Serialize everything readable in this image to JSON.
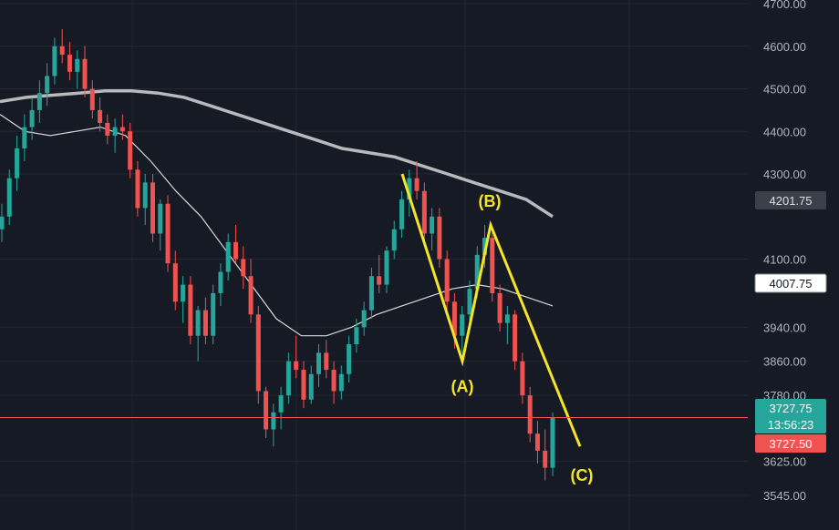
{
  "colors": {
    "background": "#161a25",
    "grid": "#232734",
    "up": "#26a69a",
    "down": "#ef5350",
    "ma_slow": "#b8b8bd",
    "ma_fast": "#d9d9d9",
    "wave": "#f5e52a",
    "price_line": "#ef5350",
    "axis_text": "#b2b5be"
  },
  "chart_data": {
    "type": "candlestick",
    "title": "",
    "ylim": [
      3520,
      4720
    ],
    "y_ticks": [
      "4700.00",
      "4600.00",
      "4500.00",
      "4400.00",
      "4300.00",
      "4100.00",
      "3940.00",
      "3860.00",
      "3780.00",
      "3625.00",
      "3545.00"
    ],
    "y_tick_values": [
      4700,
      4600,
      4500,
      4400,
      4300,
      4100,
      3940,
      3860,
      3780,
      3625,
      3545
    ],
    "candles": [
      [
        4170,
        4230,
        4140,
        4200
      ],
      [
        4200,
        4310,
        4180,
        4290
      ],
      [
        4290,
        4390,
        4260,
        4360
      ],
      [
        4360,
        4440,
        4330,
        4410
      ],
      [
        4410,
        4480,
        4380,
        4450
      ],
      [
        4450,
        4520,
        4420,
        4490
      ],
      [
        4490,
        4560,
        4460,
        4530
      ],
      [
        4530,
        4620,
        4510,
        4600
      ],
      [
        4600,
        4640,
        4560,
        4580
      ],
      [
        4580,
        4610,
        4520,
        4540
      ],
      [
        4540,
        4590,
        4500,
        4570
      ],
      [
        4570,
        4600,
        4480,
        4500
      ],
      [
        4500,
        4520,
        4430,
        4450
      ],
      [
        4450,
        4480,
        4400,
        4420
      ],
      [
        4420,
        4440,
        4370,
        4390
      ],
      [
        4390,
        4430,
        4350,
        4410
      ],
      [
        4410,
        4440,
        4380,
        4400
      ],
      [
        4400,
        4420,
        4290,
        4310
      ],
      [
        4310,
        4330,
        4200,
        4220
      ],
      [
        4220,
        4300,
        4180,
        4280
      ],
      [
        4280,
        4300,
        4140,
        4160
      ],
      [
        4160,
        4240,
        4120,
        4230
      ],
      [
        4230,
        4250,
        4070,
        4090
      ],
      [
        4090,
        4120,
        3980,
        4000
      ],
      [
        4000,
        4060,
        3950,
        4040
      ],
      [
        4040,
        4060,
        3900,
        3920
      ],
      [
        3920,
        3990,
        3860,
        3980
      ],
      [
        3980,
        4010,
        3900,
        3920
      ],
      [
        3920,
        4040,
        3900,
        4020
      ],
      [
        4020,
        4090,
        3990,
        4070
      ],
      [
        4070,
        4160,
        4050,
        4140
      ],
      [
        4140,
        4180,
        4090,
        4100
      ],
      [
        4100,
        4130,
        4030,
        4060
      ],
      [
        4060,
        4100,
        3950,
        3970
      ],
      [
        3970,
        3990,
        3760,
        3790
      ],
      [
        3790,
        3800,
        3680,
        3700
      ],
      [
        3700,
        3760,
        3660,
        3740
      ],
      [
        3740,
        3800,
        3700,
        3780
      ],
      [
        3780,
        3880,
        3760,
        3860
      ],
      [
        3860,
        3920,
        3820,
        3840
      ],
      [
        3840,
        3860,
        3750,
        3770
      ],
      [
        3770,
        3850,
        3760,
        3830
      ],
      [
        3830,
        3900,
        3800,
        3880
      ],
      [
        3880,
        3910,
        3820,
        3840
      ],
      [
        3840,
        3860,
        3760,
        3790
      ],
      [
        3790,
        3850,
        3770,
        3830
      ],
      [
        3830,
        3920,
        3810,
        3900
      ],
      [
        3900,
        3960,
        3880,
        3940
      ],
      [
        3940,
        4000,
        3920,
        3980
      ],
      [
        3980,
        4080,
        3960,
        4060
      ],
      [
        4060,
        4110,
        4020,
        4040
      ],
      [
        4040,
        4130,
        4020,
        4120
      ],
      [
        4120,
        4190,
        4100,
        4170
      ],
      [
        4170,
        4260,
        4150,
        4240
      ],
      [
        4240,
        4310,
        4200,
        4290
      ],
      [
        4290,
        4330,
        4240,
        4260
      ],
      [
        4260,
        4280,
        4140,
        4160
      ],
      [
        4160,
        4220,
        4120,
        4200
      ],
      [
        4200,
        4220,
        4080,
        4100
      ],
      [
        4100,
        4120,
        3980,
        4000
      ],
      [
        4000,
        4020,
        3890,
        3920
      ],
      [
        3920,
        3990,
        3880,
        3970
      ],
      [
        3970,
        4050,
        3940,
        4030
      ],
      [
        4030,
        4130,
        4010,
        4110
      ],
      [
        4110,
        4180,
        4080,
        4150
      ],
      [
        4150,
        4170,
        4000,
        4020
      ],
      [
        4020,
        4040,
        3930,
        3950
      ],
      [
        3950,
        3990,
        3900,
        3970
      ],
      [
        3970,
        3980,
        3840,
        3860
      ],
      [
        3860,
        3880,
        3760,
        3780
      ],
      [
        3780,
        3800,
        3670,
        3690
      ],
      [
        3690,
        3720,
        3620,
        3650
      ],
      [
        3650,
        3700,
        3580,
        3610
      ],
      [
        3610,
        3740,
        3590,
        3727.75
      ]
    ],
    "ma_slow": {
      "y": [
        4470,
        4480,
        4485,
        4490,
        4495,
        4495,
        4490,
        4480,
        4460,
        4440,
        4420,
        4400,
        4380,
        4360,
        4350,
        4340,
        4320,
        4300,
        4280,
        4260,
        4240,
        4200
      ]
    },
    "ma_fast": {
      "y": [
        4440,
        4400,
        4390,
        4400,
        4410,
        4390,
        4330,
        4260,
        4200,
        4120,
        4040,
        3960,
        3920,
        3920,
        3940,
        3970,
        3990,
        4010,
        4030,
        4040,
        4030,
        4010,
        3990
      ]
    },
    "wave_points": [
      {
        "price": 4300,
        "label": ""
      },
      {
        "price": 3860,
        "label": "(A)"
      },
      {
        "price": 4180,
        "label": "(B)"
      },
      {
        "price": 3660,
        "label": "(C)"
      }
    ],
    "horizontal_line": 3727.75,
    "price_badges": [
      {
        "value": "4201.75",
        "style": "grey"
      },
      {
        "value": "4007.75",
        "style": "white"
      },
      {
        "value": "3727.75",
        "style": "up",
        "sub": "13:56:23"
      },
      {
        "value": "3727.50",
        "style": "down"
      }
    ]
  }
}
